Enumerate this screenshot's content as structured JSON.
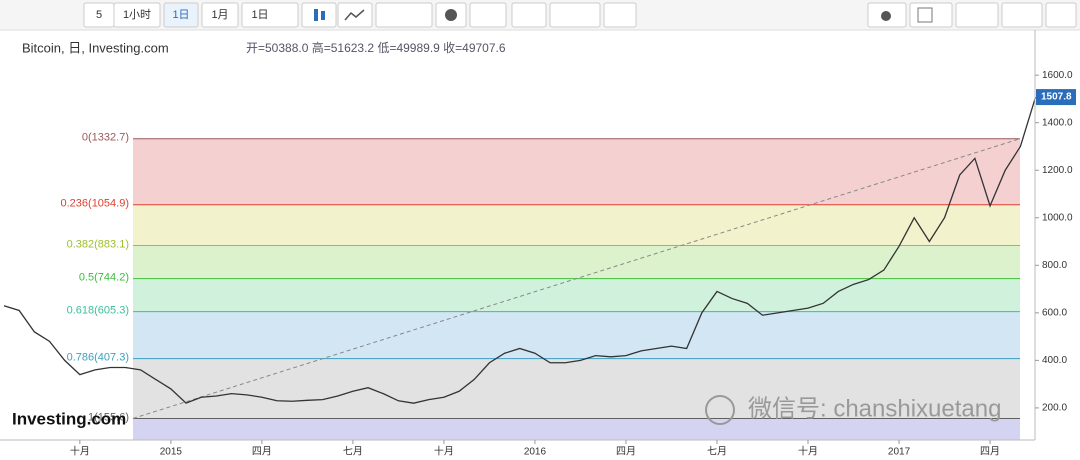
{
  "toolbar": {
    "buttons": [
      "5",
      "1小时",
      "1日",
      "1月",
      "1日"
    ]
  },
  "chart_data": {
    "type": "line",
    "title": "Bitcoin, 日, Investing.com",
    "subtitle": "开=50388.0 高=51623.2 低=49989.9 收=49707.6",
    "categories": [
      null,
      null,
      null,
      null,
      null,
      "十月",
      null,
      null,
      null,
      null,
      null,
      "2015",
      null,
      null,
      null,
      null,
      null,
      "四月",
      null,
      null,
      null,
      null,
      null,
      "七月",
      null,
      null,
      null,
      null,
      null,
      "十月",
      null,
      null,
      null,
      null,
      null,
      "2016",
      null,
      null,
      null,
      null,
      null,
      "四月",
      null,
      null,
      null,
      null,
      null,
      "七月",
      null,
      null,
      null,
      null,
      null,
      "十月",
      null,
      null,
      null,
      null,
      null,
      "2017",
      null,
      null,
      null,
      null,
      null,
      "四月",
      null,
      null,
      null
    ],
    "values": [
      630,
      610,
      520,
      480,
      400,
      340,
      360,
      370,
      370,
      360,
      320,
      280,
      220,
      245,
      250,
      260,
      255,
      245,
      230,
      228,
      232,
      235,
      250,
      270,
      285,
      260,
      230,
      220,
      235,
      245,
      270,
      320,
      390,
      430,
      450,
      430,
      390,
      390,
      400,
      420,
      415,
      420,
      440,
      450,
      460,
      450,
      600,
      690,
      660,
      640,
      590,
      600,
      610,
      620,
      640,
      690,
      720,
      740,
      780,
      880,
      1000,
      900,
      1000,
      1180,
      1250,
      1050,
      1200,
      1300,
      1507.8
    ],
    "color": "#333333",
    "ylim": [
      65,
      1790
    ],
    "yticks": [
      {
        "value": 200,
        "label": "200.0"
      },
      {
        "value": 400,
        "label": "400.0"
      },
      {
        "value": 600,
        "label": "600.0"
      },
      {
        "value": 800,
        "label": "800.0"
      },
      {
        "value": 1000,
        "label": "1000.0"
      },
      {
        "value": 1200,
        "label": "1200.0"
      },
      {
        "value": 1400,
        "label": "1400.0"
      },
      {
        "value": 1600,
        "label": "1600.0"
      }
    ],
    "fib_levels": [
      {
        "label": "0(1332.7)",
        "price": 1332.7,
        "color": "#9a5a5a",
        "fill": "#f4d0d0"
      },
      {
        "label": "0.236(1054.9)",
        "price": 1054.9,
        "color": "#e0402f",
        "fill": "#f2f2cc"
      },
      {
        "label": "0.382(883.1)",
        "price": 883.1,
        "color": "#9cbf2c",
        "fill": "#dcf2cc"
      },
      {
        "label": "0.5(744.2)",
        "price": 744.2,
        "color": "#3cbf3c",
        "fill": "#d0f2dc"
      },
      {
        "label": "0.618(605.3)",
        "price": 605.3,
        "color": "#3cbf9c",
        "fill": "#d2e6f4"
      },
      {
        "label": "0.786(407.3)",
        "price": 407.3,
        "color": "#3ca0bf",
        "fill": "#e2e2e2"
      },
      {
        "label": "1(155.6)",
        "price": 155.6,
        "color": "#606060",
        "fill": "#d4d4f2"
      }
    ],
    "logo": "Investing.com",
    "watermark": "微信号: chanshixuetang"
  }
}
